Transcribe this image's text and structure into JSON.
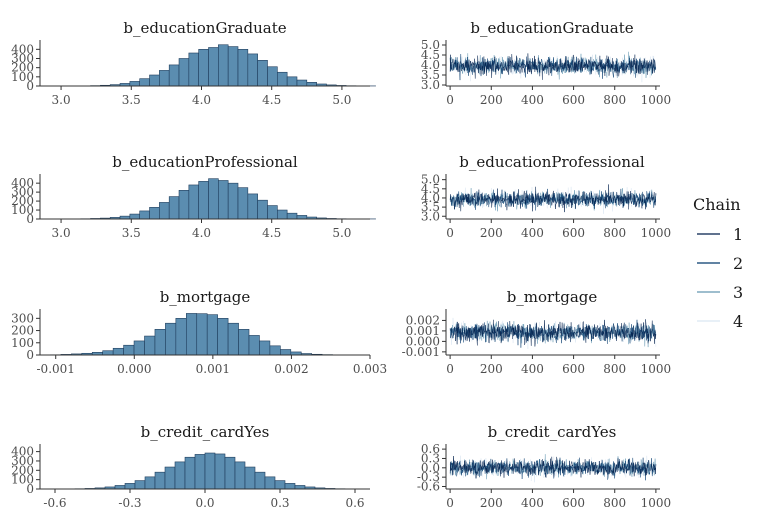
{
  "figure": {
    "legend": {
      "title": "Chain",
      "placement": "right",
      "entries": [
        {
          "label": "1",
          "color": "#011f4b"
        },
        {
          "label": "2",
          "color": "#03396c"
        },
        {
          "label": "3",
          "color": "#6497b1"
        },
        {
          "label": "4",
          "color": "#d9e6f2"
        }
      ]
    },
    "hist_fill": "#5b8db0",
    "hist_edge": "#1f3d5c"
  },
  "chart_data": [
    {
      "type": "bar",
      "title": "b_educationGraduate",
      "xlim": [
        2.85,
        5.2
      ],
      "xticks": [
        3.0,
        3.5,
        4.0,
        4.5,
        5.0
      ],
      "xtick_labels": [
        "3.0",
        "3.5",
        "4.0",
        "4.5",
        "5.0"
      ],
      "ylim": [
        0,
        480
      ],
      "yticks": [
        0,
        100,
        200,
        300,
        400
      ],
      "ytick_labels": [
        "0",
        "100",
        "200",
        "300",
        "400"
      ],
      "bin_start": 3.0,
      "bin_width": 0.07,
      "counts": [
        1,
        1,
        2,
        4,
        8,
        15,
        28,
        50,
        80,
        120,
        170,
        230,
        300,
        360,
        400,
        420,
        450,
        430,
        400,
        350,
        280,
        210,
        150,
        100,
        65,
        40,
        22,
        12,
        6,
        3,
        1,
        1
      ]
    },
    {
      "type": "line",
      "title": "b_educationGraduate",
      "xlim": [
        -20,
        1020
      ],
      "xticks": [
        0,
        200,
        400,
        600,
        800,
        1000
      ],
      "xtick_labels": [
        "0",
        "200",
        "400",
        "600",
        "800",
        "1000"
      ],
      "ylim": [
        2.95,
        5.15
      ],
      "yticks": [
        3.0,
        3.5,
        4.0,
        4.5,
        5.0
      ],
      "ytick_labels": [
        "3.0",
        "3.5",
        "4.0",
        "4.5",
        "5.0"
      ],
      "trace": {
        "iterations": 1000,
        "mean": 3.95,
        "sd": 0.22
      }
    },
    {
      "type": "bar",
      "title": "b_educationProfessional",
      "xlim": [
        2.85,
        5.2
      ],
      "xticks": [
        3.0,
        3.5,
        4.0,
        4.5,
        5.0
      ],
      "xtick_labels": [
        "3.0",
        "3.5",
        "4.0",
        "4.5",
        "5.0"
      ],
      "ylim": [
        0,
        480
      ],
      "yticks": [
        0,
        100,
        200,
        300,
        400
      ],
      "ytick_labels": [
        "0",
        "100",
        "200",
        "300",
        "400"
      ],
      "bin_start": 3.0,
      "bin_width": 0.07,
      "counts": [
        1,
        2,
        3,
        6,
        10,
        18,
        32,
        55,
        90,
        130,
        185,
        250,
        320,
        380,
        420,
        450,
        430,
        400,
        350,
        280,
        210,
        150,
        100,
        65,
        40,
        22,
        12,
        6,
        3,
        2,
        1,
        1
      ]
    },
    {
      "type": "line",
      "title": "b_educationProfessional",
      "xlim": [
        -20,
        1020
      ],
      "xticks": [
        0,
        200,
        400,
        600,
        800,
        1000
      ],
      "xtick_labels": [
        "0",
        "200",
        "400",
        "600",
        "800",
        "1000"
      ],
      "ylim": [
        2.85,
        5.2
      ],
      "yticks": [
        3.0,
        3.5,
        4.0,
        4.5,
        5.0
      ],
      "ytick_labels": [
        "3.0",
        "3.5",
        "4.0",
        "4.5",
        "5.0"
      ],
      "trace": {
        "iterations": 1000,
        "mean": 3.92,
        "sd": 0.22
      }
    },
    {
      "type": "bar",
      "title": "b_mortgage",
      "xlim": [
        -0.0012,
        0.003
      ],
      "xticks": [
        -0.001,
        0,
        0.001,
        0.002,
        0.003
      ],
      "xtick_labels": [
        "-0.001",
        "0.000",
        "0.001",
        "0.002",
        "0.003"
      ],
      "ylim": [
        0,
        360
      ],
      "yticks": [
        0,
        100,
        200,
        300
      ],
      "ytick_labels": [
        "0",
        "100",
        "200",
        "300"
      ],
      "bin_start": -0.0012,
      "bin_width": 0.000133,
      "counts": [
        1,
        2,
        5,
        9,
        14,
        22,
        35,
        55,
        80,
        115,
        155,
        210,
        260,
        300,
        340,
        338,
        330,
        300,
        260,
        210,
        160,
        115,
        75,
        45,
        25,
        12,
        6,
        3,
        1
      ]
    },
    {
      "type": "line",
      "title": "b_mortgage",
      "xlim": [
        -20,
        1020
      ],
      "xticks": [
        0,
        200,
        400,
        600,
        800,
        1000
      ],
      "xtick_labels": [
        "0",
        "200",
        "400",
        "600",
        "800",
        "1000"
      ],
      "ylim": [
        -0.0013,
        0.0029
      ],
      "yticks": [
        -0.001,
        0,
        0.001,
        0.002
      ],
      "ytick_labels": [
        "-0.001",
        "0.000",
        "0.001",
        "0.002"
      ],
      "trace": {
        "iterations": 1000,
        "mean": 0.00085,
        "sd": 0.00045
      }
    },
    {
      "type": "bar",
      "title": "b_credit_cardYes",
      "xlim": [
        -0.66,
        0.66
      ],
      "xticks": [
        -0.6,
        -0.3,
        0,
        0.3,
        0.6
      ],
      "xtick_labels": [
        "-0.6",
        "-0.3",
        "0.0",
        "0.3",
        "0.6"
      ],
      "ylim": [
        0,
        460
      ],
      "yticks": [
        0,
        100,
        200,
        300,
        400
      ],
      "ytick_labels": [
        "0",
        "100",
        "200",
        "300",
        "400"
      ],
      "bin_start": -0.6,
      "bin_width": 0.04,
      "counts": [
        1,
        2,
        3,
        6,
        12,
        22,
        38,
        60,
        90,
        130,
        180,
        235,
        290,
        340,
        370,
        385,
        375,
        340,
        290,
        235,
        180,
        130,
        90,
        60,
        38,
        22,
        12,
        6,
        3,
        2
      ]
    },
    {
      "type": "line",
      "title": "b_credit_cardYes",
      "xlim": [
        -20,
        1020
      ],
      "xticks": [
        0,
        200,
        400,
        600,
        800,
        1000
      ],
      "xtick_labels": [
        "0",
        "200",
        "400",
        "600",
        "800",
        "1000"
      ],
      "ylim": [
        -0.68,
        0.7
      ],
      "yticks": [
        -0.6,
        -0.3,
        0,
        0.3,
        0.6
      ],
      "ytick_labels": [
        "-0.6",
        "-0.3",
        "0.0",
        "0.3",
        "0.6"
      ],
      "trace": {
        "iterations": 1000,
        "mean": 0.0,
        "sd": 0.13
      }
    }
  ]
}
